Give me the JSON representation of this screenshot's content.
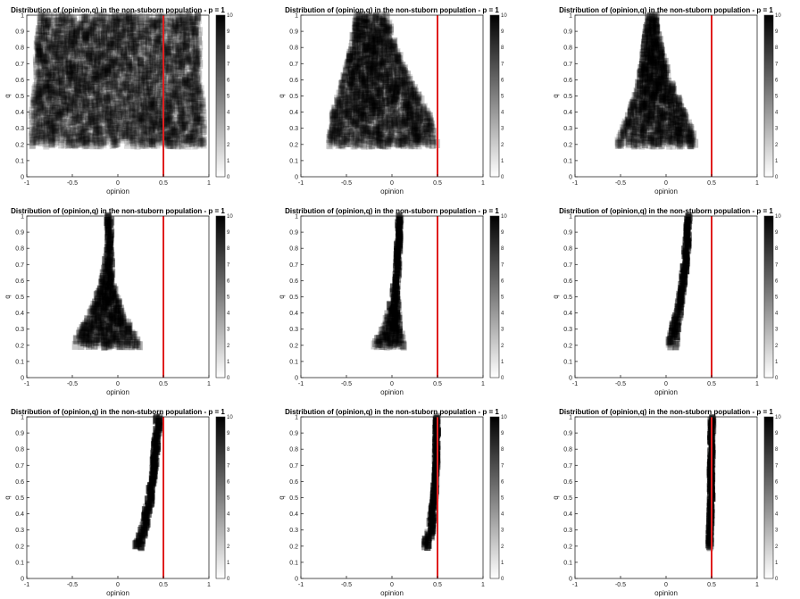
{
  "chart_data": [
    {
      "type": "heatmap",
      "title": "Distribution of (opinion,q) in the non-stuborn population - p = 1",
      "xlabel": "opinion",
      "ylabel": "q",
      "xlim": [
        -1,
        1
      ],
      "ylim": [
        0,
        1
      ],
      "xticks": [
        "-1",
        "-0.5",
        "0",
        "0.5",
        "1"
      ],
      "yticks": [
        "0",
        "0.1",
        "0.2",
        "0.3",
        "0.4",
        "0.5",
        "0.6",
        "0.7",
        "0.8",
        "0.9",
        "1"
      ],
      "colorbar": {
        "min": 0,
        "max": 10,
        "ticks": [
          "0",
          "1",
          "2",
          "3",
          "4",
          "5",
          "6",
          "7",
          "8",
          "9",
          "10"
        ]
      },
      "reference_line": {
        "x": 0.5,
        "color": "#e01e1e"
      },
      "profile": [
        [
          0.2,
          -0.95,
          0.95,
          1.6
        ],
        [
          0.4,
          -0.95,
          0.95,
          1.8
        ],
        [
          0.6,
          -0.9,
          0.9,
          1.8
        ],
        [
          0.8,
          -0.9,
          0.9,
          1.8
        ],
        [
          1.0,
          -0.85,
          0.9,
          1.6
        ]
      ]
    },
    {
      "type": "heatmap",
      "title": "Distribution of (opinion,q) in the non-stuborn population - p = 1",
      "xlabel": "opinion",
      "ylabel": "q",
      "xlim": [
        -1,
        1
      ],
      "ylim": [
        0,
        1
      ],
      "xticks": [
        "-1",
        "-0.5",
        "0",
        "0.5",
        "1"
      ],
      "yticks": [
        "0",
        "0.1",
        "0.2",
        "0.3",
        "0.4",
        "0.5",
        "0.6",
        "0.7",
        "0.8",
        "0.9",
        "1"
      ],
      "colorbar": {
        "min": 0,
        "max": 10,
        "ticks": [
          "0",
          "1",
          "2",
          "3",
          "4",
          "5",
          "6",
          "7",
          "8",
          "9",
          "10"
        ]
      },
      "reference_line": {
        "x": 0.5,
        "color": "#e01e1e"
      },
      "profile": [
        [
          0.2,
          -0.7,
          0.5,
          2.2
        ],
        [
          0.4,
          -0.65,
          0.4,
          2.8
        ],
        [
          0.6,
          -0.55,
          0.2,
          3.2
        ],
        [
          0.8,
          -0.45,
          0.05,
          3.5
        ],
        [
          1.0,
          -0.4,
          -0.05,
          3.5
        ]
      ]
    },
    {
      "type": "heatmap",
      "title": "Distribution of (opinion,q) in the non-stuborn population - p = 1",
      "xlabel": "opinion",
      "ylabel": "q",
      "xlim": [
        -1,
        1
      ],
      "ylim": [
        0,
        1
      ],
      "xticks": [
        "-1",
        "-0.5",
        "0",
        "0.5",
        "1"
      ],
      "yticks": [
        "0",
        "0.1",
        "0.2",
        "0.3",
        "0.4",
        "0.5",
        "0.6",
        "0.7",
        "0.8",
        "0.9",
        "1"
      ],
      "colorbar": {
        "min": 0,
        "max": 10,
        "ticks": [
          "0",
          "1",
          "2",
          "3",
          "4",
          "5",
          "6",
          "7",
          "8",
          "9",
          "10"
        ]
      },
      "reference_line": {
        "x": 0.5,
        "color": "#e01e1e"
      },
      "profile": [
        [
          0.2,
          -0.55,
          0.35,
          2.5
        ],
        [
          0.4,
          -0.4,
          0.2,
          3.5
        ],
        [
          0.6,
          -0.3,
          0.05,
          4.5
        ],
        [
          0.8,
          -0.25,
          -0.05,
          5.5
        ],
        [
          1.0,
          -0.2,
          -0.1,
          6
        ]
      ]
    },
    {
      "type": "heatmap",
      "title": "Distribution of (opinion,q) in the non-stuborn population - p = 1",
      "xlabel": "opinion",
      "ylabel": "q",
      "xlim": [
        -1,
        1
      ],
      "ylim": [
        0,
        1
      ],
      "xticks": [
        "-1",
        "-0.5",
        "0",
        "0.5",
        "1"
      ],
      "yticks": [
        "0",
        "0.1",
        "0.2",
        "0.3",
        "0.4",
        "0.5",
        "0.6",
        "0.7",
        "0.8",
        "0.9",
        "1"
      ],
      "colorbar": {
        "min": 0,
        "max": 10,
        "ticks": [
          "0",
          "1",
          "2",
          "3",
          "4",
          "5",
          "6",
          "7",
          "8",
          "9",
          "10"
        ]
      },
      "reference_line": {
        "x": 0.5,
        "color": "#e01e1e"
      },
      "profile": [
        [
          0.2,
          -0.5,
          0.25,
          3
        ],
        [
          0.4,
          -0.3,
          0.05,
          4.5
        ],
        [
          0.6,
          -0.18,
          -0.05,
          7
        ],
        [
          0.8,
          -0.12,
          -0.07,
          9
        ],
        [
          1.0,
          -0.12,
          -0.07,
          9.5
        ]
      ]
    },
    {
      "type": "heatmap",
      "title": "Distribution of (opinion,q) in the non-stuborn population - p = 1",
      "xlabel": "opinion",
      "ylabel": "q",
      "xlim": [
        -1,
        1
      ],
      "ylim": [
        0,
        1
      ],
      "xticks": [
        "-1",
        "-0.5",
        "0",
        "0.5",
        "1"
      ],
      "yticks": [
        "0",
        "0.1",
        "0.2",
        "0.3",
        "0.4",
        "0.5",
        "0.6",
        "0.7",
        "0.8",
        "0.9",
        "1"
      ],
      "colorbar": {
        "min": 0,
        "max": 10,
        "ticks": [
          "0",
          "1",
          "2",
          "3",
          "4",
          "5",
          "6",
          "7",
          "8",
          "9",
          "10"
        ]
      },
      "reference_line": {
        "x": 0.5,
        "color": "#e01e1e"
      },
      "profile": [
        [
          0.2,
          -0.2,
          0.15,
          4
        ],
        [
          0.3,
          -0.1,
          0.1,
          6
        ],
        [
          0.5,
          0.0,
          0.06,
          10
        ],
        [
          0.7,
          0.04,
          0.08,
          10
        ],
        [
          1.0,
          0.07,
          0.1,
          10
        ]
      ]
    },
    {
      "type": "heatmap",
      "title": "Distribution of (opinion,q) in the non-stuborn population - p = 1",
      "xlabel": "opinion",
      "ylabel": "q",
      "xlim": [
        -1,
        1
      ],
      "ylim": [
        0,
        1
      ],
      "xticks": [
        "-1",
        "-0.5",
        "0",
        "0.5",
        "1"
      ],
      "yticks": [
        "0",
        "0.1",
        "0.2",
        "0.3",
        "0.4",
        "0.5",
        "0.6",
        "0.7",
        "0.8",
        "0.9",
        "1"
      ],
      "colorbar": {
        "min": 0,
        "max": 10,
        "ticks": [
          "0",
          "1",
          "2",
          "3",
          "4",
          "5",
          "6",
          "7",
          "8",
          "9",
          "10"
        ]
      },
      "reference_line": {
        "x": 0.5,
        "color": "#e01e1e"
      },
      "profile": [
        [
          0.2,
          0.02,
          0.12,
          5
        ],
        [
          0.3,
          0.06,
          0.14,
          8
        ],
        [
          0.5,
          0.14,
          0.18,
          10
        ],
        [
          0.7,
          0.19,
          0.23,
          10
        ],
        [
          1.0,
          0.23,
          0.27,
          10
        ]
      ]
    },
    {
      "type": "heatmap",
      "title": "Distribution of (opinion,q) in the non-stuborn population - p = 1",
      "xlabel": "opinion",
      "ylabel": "q",
      "xlim": [
        -1,
        1
      ],
      "ylim": [
        0,
        1
      ],
      "xticks": [
        "-1",
        "-0.5",
        "0",
        "0.5",
        "1"
      ],
      "yticks": [
        "0",
        "0.1",
        "0.2",
        "0.3",
        "0.4",
        "0.5",
        "0.6",
        "0.7",
        "0.8",
        "0.9",
        "1"
      ],
      "colorbar": {
        "min": 0,
        "max": 10,
        "ticks": [
          "0",
          "1",
          "2",
          "3",
          "4",
          "5",
          "6",
          "7",
          "8",
          "9",
          "10"
        ]
      },
      "reference_line": {
        "x": 0.5,
        "color": "#e01e1e"
      },
      "profile": [
        [
          0.2,
          0.18,
          0.26,
          8
        ],
        [
          0.3,
          0.25,
          0.31,
          10
        ],
        [
          0.5,
          0.33,
          0.38,
          10
        ],
        [
          0.7,
          0.38,
          0.42,
          10
        ],
        [
          1.0,
          0.42,
          0.47,
          10
        ]
      ]
    },
    {
      "type": "heatmap",
      "title": "Distribution of (opinion,q) in the non-stuborn population - p = 1",
      "xlabel": "opinion",
      "ylabel": "q",
      "xlim": [
        -1,
        1
      ],
      "ylim": [
        0,
        1
      ],
      "xticks": [
        "-1",
        "-0.5",
        "0",
        "0.5",
        "1"
      ],
      "yticks": [
        "0",
        "0.1",
        "0.2",
        "0.3",
        "0.4",
        "0.5",
        "0.6",
        "0.7",
        "0.8",
        "0.9",
        "1"
      ],
      "colorbar": {
        "min": 0,
        "max": 10,
        "ticks": [
          "0",
          "1",
          "2",
          "3",
          "4",
          "5",
          "6",
          "7",
          "8",
          "9",
          "10"
        ]
      },
      "reference_line": {
        "x": 0.5,
        "color": "#e01e1e"
      },
      "profile": [
        [
          0.2,
          0.34,
          0.42,
          8
        ],
        [
          0.3,
          0.4,
          0.45,
          10
        ],
        [
          0.5,
          0.45,
          0.48,
          10
        ],
        [
          0.7,
          0.47,
          0.5,
          10
        ],
        [
          1.0,
          0.48,
          0.51,
          10
        ]
      ]
    },
    {
      "type": "heatmap",
      "title": "Distribution of (opinion,q) in the non-stuborn population - p = 1",
      "xlabel": "opinion",
      "ylabel": "q",
      "xlim": [
        -1,
        1
      ],
      "ylim": [
        0,
        1
      ],
      "xticks": [
        "-1",
        "-0.5",
        "0",
        "0.5",
        "1"
      ],
      "yticks": [
        "0",
        "0.1",
        "0.2",
        "0.3",
        "0.4",
        "0.5",
        "0.6",
        "0.7",
        "0.8",
        "0.9",
        "1"
      ],
      "colorbar": {
        "min": 0,
        "max": 10,
        "ticks": [
          "0",
          "1",
          "2",
          "3",
          "4",
          "5",
          "6",
          "7",
          "8",
          "9",
          "10"
        ]
      },
      "reference_line": {
        "x": 0.5,
        "color": "#e01e1e"
      },
      "profile": [
        [
          0.2,
          0.46,
          0.49,
          10
        ],
        [
          0.3,
          0.47,
          0.5,
          10
        ],
        [
          0.5,
          0.48,
          0.51,
          10
        ],
        [
          0.7,
          0.48,
          0.51,
          10
        ],
        [
          1.0,
          0.49,
          0.52,
          10
        ]
      ]
    }
  ]
}
